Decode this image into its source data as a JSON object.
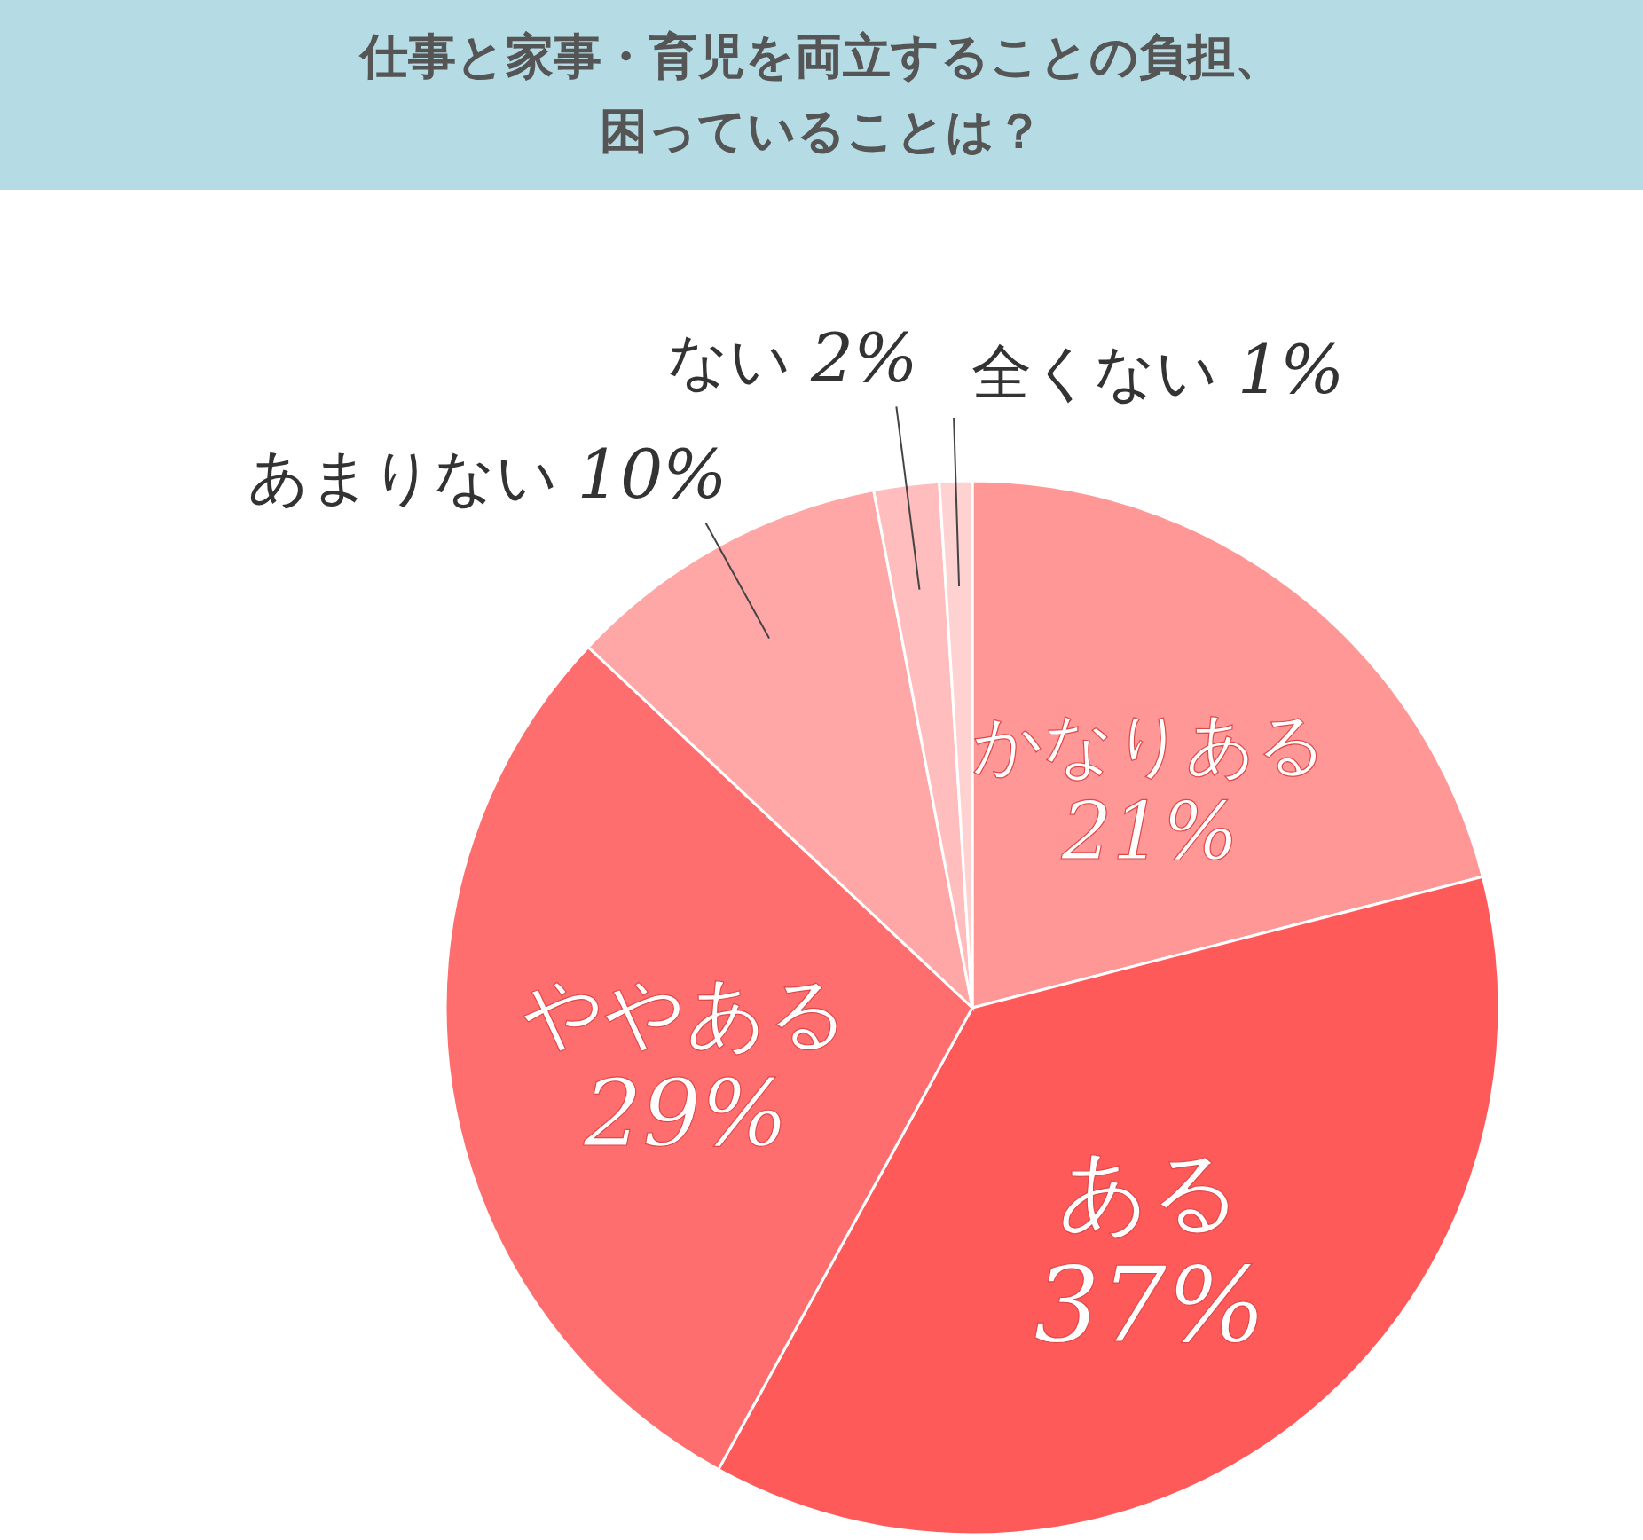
{
  "chart_data": {
    "type": "pie",
    "title": "仕事と家事・育児を両立することの負担、困っていることは？",
    "categories": [
      "かなりある",
      "ある",
      "ややある",
      "あまりない",
      "ない",
      "全くない"
    ],
    "values": [
      21,
      37,
      29,
      10,
      2,
      1
    ],
    "value_labels": [
      "21%",
      "37%",
      "29%",
      "10%",
      "2%",
      "1%"
    ],
    "colors": [
      "#ff9797",
      "#ff5a5a",
      "#ff6e6e",
      "#ffa6a6",
      "#ffbdbd",
      "#ffd2d2"
    ]
  }
}
